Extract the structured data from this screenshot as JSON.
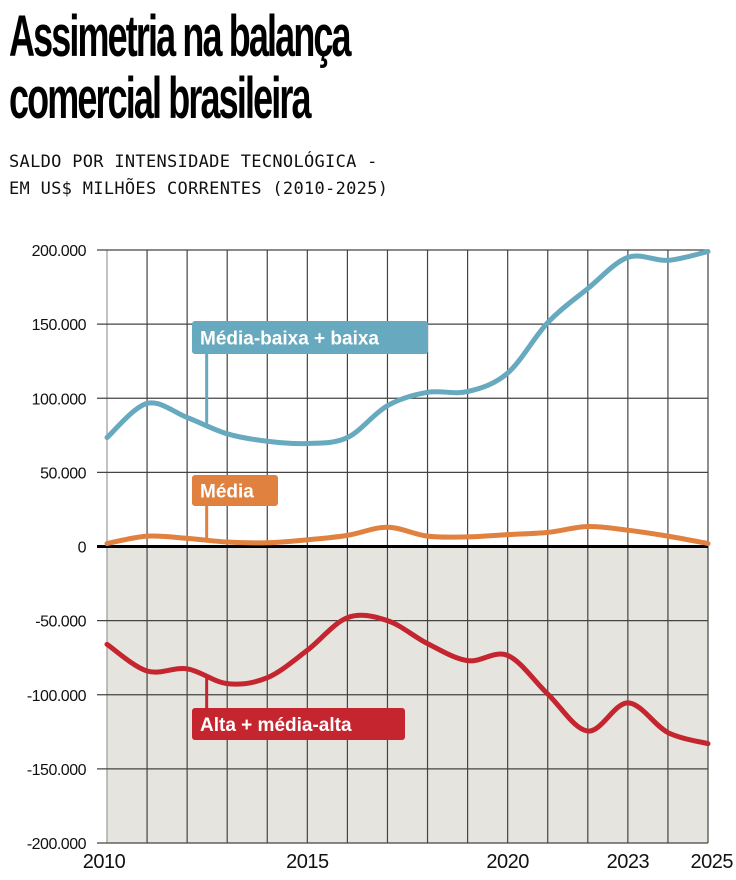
{
  "header": {
    "title_line1": "Assimetria na balança",
    "title_line2": "comercial brasileira",
    "subtitle_line1": "SALDO POR INTENSIDADE TECNOLÓGICA -",
    "subtitle_line2": "EM US$ MILHÕES CORRENTES (2010-2025)"
  },
  "chart_data": {
    "type": "line",
    "title": "Assimetria na balança comercial brasileira",
    "subtitle": "Saldo por intensidade tecnológica - em US$ milhões correntes (2010-2025)",
    "xlabel": "",
    "ylabel": "",
    "x": [
      2010,
      2011,
      2012,
      2013,
      2014,
      2015,
      2016,
      2017,
      2018,
      2019,
      2020,
      2021,
      2022,
      2023,
      2024,
      2025
    ],
    "xlim": [
      2010,
      2025
    ],
    "ylim": [
      -200000,
      200000
    ],
    "x_ticks": [
      {
        "value": 2010,
        "label": "2010"
      },
      {
        "value": 2015,
        "label": "2015"
      },
      {
        "value": 2020,
        "label": "2020"
      },
      {
        "value": 2023,
        "label": "2023"
      },
      {
        "value": 2025,
        "label": "2025"
      }
    ],
    "y_ticks": [
      {
        "value": 200000,
        "label": "200.000"
      },
      {
        "value": 150000,
        "label": "150.000"
      },
      {
        "value": 100000,
        "label": "100.000"
      },
      {
        "value": 50000,
        "label": "50.000"
      },
      {
        "value": 0,
        "label": "0"
      },
      {
        "value": -50000,
        "label": "-50.000"
      },
      {
        "value": -100000,
        "label": "-100.000"
      },
      {
        "value": -150000,
        "label": "-150.000"
      },
      {
        "value": -200000,
        "label": "-200.000"
      }
    ],
    "grid": true,
    "negative_region_shaded": true,
    "series": [
      {
        "name": "Média-baixa + baixa",
        "color": "#67a9bf",
        "label_anchor_year": 2012.5,
        "values": [
          73500,
          96500,
          87000,
          76000,
          71000,
          69500,
          73500,
          95000,
          104000,
          104500,
          117000,
          151000,
          174000,
          195000,
          193000,
          199000
        ]
      },
      {
        "name": "Média",
        "color": "#e0813f",
        "label_anchor_year": 2012.5,
        "values": [
          2000,
          7000,
          5500,
          3000,
          2500,
          4500,
          7500,
          13000,
          7000,
          6500,
          8000,
          9500,
          13500,
          11000,
          7000,
          2000
        ]
      },
      {
        "name": "Alta + média-alta",
        "color": "#c4252f",
        "label_anchor_year": 2012.5,
        "values": [
          -66000,
          -84000,
          -82500,
          -92500,
          -88500,
          -70000,
          -48000,
          -50000,
          -65500,
          -77000,
          -73500,
          -99500,
          -124500,
          -105500,
          -125500,
          -133000
        ]
      }
    ]
  }
}
